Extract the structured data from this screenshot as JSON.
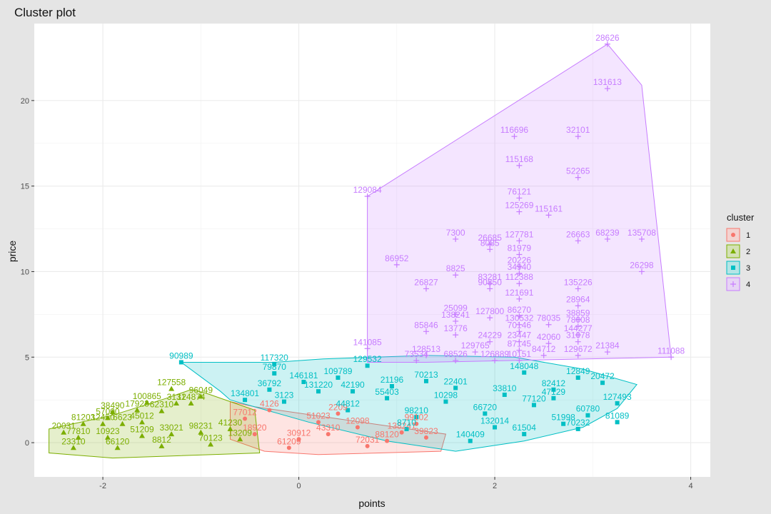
{
  "chart_data": {
    "type": "scatter",
    "title": "Cluster plot",
    "xlabel": "points",
    "ylabel": "price",
    "xlim": [
      -2.7,
      4.2
    ],
    "ylim": [
      -2.0,
      24.5
    ],
    "x_ticks": [
      -2,
      0,
      2,
      4
    ],
    "y_ticks": [
      0,
      5,
      10,
      15,
      20
    ],
    "grid": true,
    "legend": {
      "title": "cluster",
      "placement": "right"
    },
    "clusters": [
      {
        "name": "1",
        "color": "#F8766D",
        "shape": "circle",
        "hull": [
          [
            -0.7,
            2.4
          ],
          [
            -0.45,
            2.1
          ],
          [
            1.0,
            0.9
          ],
          [
            1.5,
            0.5
          ],
          [
            1.45,
            -0.5
          ],
          [
            0.2,
            -0.7
          ],
          [
            -0.35,
            -0.5
          ],
          [
            -0.7,
            0.2
          ]
        ],
        "points": [
          {
            "x": 1.05,
            "y": 0.6,
            "label": "138241"
          },
          {
            "x": 1.3,
            "y": 0.3,
            "label": "39823"
          },
          {
            "x": -0.3,
            "y": 1.9,
            "label": "4126"
          },
          {
            "x": 0.2,
            "y": 1.2,
            "label": "51023"
          },
          {
            "x": 0.6,
            "y": 0.9,
            "label": "12098"
          },
          {
            "x": -0.55,
            "y": 1.4,
            "label": "77012"
          },
          {
            "x": 0.0,
            "y": 0.2,
            "label": "30912"
          },
          {
            "x": 0.9,
            "y": 0.1,
            "label": "88120"
          },
          {
            "x": -0.1,
            "y": -0.3,
            "label": "61209"
          },
          {
            "x": 0.4,
            "y": 1.7,
            "label": "2209"
          },
          {
            "x": 1.2,
            "y": 1.1,
            "label": "99102"
          },
          {
            "x": 0.7,
            "y": -0.2,
            "label": "72031"
          },
          {
            "x": -0.45,
            "y": 0.5,
            "label": "18920"
          },
          {
            "x": 0.3,
            "y": 0.5,
            "label": "43310"
          }
        ]
      },
      {
        "name": "2",
        "color": "#7CAE00",
        "shape": "triangle",
        "hull": [
          [
            -2.55,
            0.8
          ],
          [
            -1.9,
            1.6
          ],
          [
            -1.35,
            2.6
          ],
          [
            -1.1,
            3.1
          ],
          [
            -0.95,
            2.9
          ],
          [
            -0.45,
            1.9
          ],
          [
            -0.4,
            -0.6
          ],
          [
            -1.9,
            -0.9
          ],
          [
            -2.55,
            -0.6
          ]
        ],
        "points": [
          {
            "x": -1.3,
            "y": 3.15,
            "label": "127558"
          },
          {
            "x": -1.0,
            "y": 2.7,
            "label": "96049"
          },
          {
            "x": -1.55,
            "y": 2.35,
            "label": "100865"
          },
          {
            "x": -1.25,
            "y": 2.3,
            "label": "3131"
          },
          {
            "x": -1.1,
            "y": 2.3,
            "label": "124874"
          },
          {
            "x": -1.9,
            "y": 1.8,
            "label": "38490"
          },
          {
            "x": -1.65,
            "y": 1.9,
            "label": "17923"
          },
          {
            "x": -1.4,
            "y": 1.85,
            "label": "62310"
          },
          {
            "x": -1.95,
            "y": 1.45,
            "label": "57000"
          },
          {
            "x": -2.2,
            "y": 1.1,
            "label": "81203"
          },
          {
            "x": -2.0,
            "y": 1.1,
            "label": "12450"
          },
          {
            "x": -1.8,
            "y": 1.1,
            "label": "6623"
          },
          {
            "x": -1.6,
            "y": 1.2,
            "label": "45012"
          },
          {
            "x": -2.4,
            "y": 0.6,
            "label": "20031"
          },
          {
            "x": -2.25,
            "y": 0.3,
            "label": "77810"
          },
          {
            "x": -1.95,
            "y": 0.3,
            "label": "10923"
          },
          {
            "x": -1.6,
            "y": 0.4,
            "label": "51209"
          },
          {
            "x": -1.3,
            "y": 0.5,
            "label": "33021"
          },
          {
            "x": -1.0,
            "y": 0.6,
            "label": "98231"
          },
          {
            "x": -0.7,
            "y": 0.8,
            "label": "41230"
          },
          {
            "x": -2.3,
            "y": -0.3,
            "label": "23310"
          },
          {
            "x": -1.85,
            "y": -0.3,
            "label": "66120"
          },
          {
            "x": -1.4,
            "y": -0.2,
            "label": "8812"
          },
          {
            "x": -0.9,
            "y": -0.1,
            "label": "70123"
          },
          {
            "x": -0.6,
            "y": 0.2,
            "label": "13209"
          }
        ]
      },
      {
        "name": "3",
        "color": "#00BFC4",
        "shape": "square",
        "hull": [
          [
            -1.2,
            4.7
          ],
          [
            -0.25,
            4.7
          ],
          [
            0.25,
            4.9
          ],
          [
            1.3,
            5.1
          ],
          [
            2.2,
            5.0
          ],
          [
            2.9,
            4.3
          ],
          [
            3.45,
            3.4
          ],
          [
            3.25,
            2.0
          ],
          [
            2.9,
            0.9
          ],
          [
            2.3,
            0.1
          ],
          [
            1.6,
            -0.5
          ],
          [
            0.9,
            0.1
          ],
          [
            0.1,
            1.2
          ],
          [
            -0.7,
            2.5
          ],
          [
            -0.8,
            3.0
          ]
        ],
        "points": [
          {
            "x": -1.2,
            "y": 4.7,
            "label": "90989"
          },
          {
            "x": -0.25,
            "y": 4.6,
            "label": "117320"
          },
          {
            "x": -0.25,
            "y": 4.05,
            "label": "79870"
          },
          {
            "x": 0.05,
            "y": 3.55,
            "label": "146181"
          },
          {
            "x": 0.4,
            "y": 3.8,
            "label": "109789"
          },
          {
            "x": 0.7,
            "y": 4.5,
            "label": "129532"
          },
          {
            "x": -0.3,
            "y": 3.1,
            "label": "36792"
          },
          {
            "x": 0.2,
            "y": 3.0,
            "label": "131220"
          },
          {
            "x": 0.55,
            "y": 3.0,
            "label": "42190"
          },
          {
            "x": -0.55,
            "y": 2.5,
            "label": "134801"
          },
          {
            "x": -0.15,
            "y": 2.4,
            "label": "3123"
          },
          {
            "x": 0.95,
            "y": 3.3,
            "label": "21196"
          },
          {
            "x": 1.3,
            "y": 3.6,
            "label": "70213"
          },
          {
            "x": 1.6,
            "y": 3.2,
            "label": "22401"
          },
          {
            "x": 2.3,
            "y": 4.1,
            "label": "148048"
          },
          {
            "x": 2.85,
            "y": 3.8,
            "label": "12849"
          },
          {
            "x": 3.1,
            "y": 3.5,
            "label": "20472"
          },
          {
            "x": 2.6,
            "y": 3.1,
            "label": "82412"
          },
          {
            "x": 2.1,
            "y": 2.8,
            "label": "33810"
          },
          {
            "x": 3.25,
            "y": 2.3,
            "label": "127493"
          },
          {
            "x": 3.25,
            "y": 1.2,
            "label": "81089"
          },
          {
            "x": 2.95,
            "y": 1.6,
            "label": "60780"
          },
          {
            "x": 2.7,
            "y": 1.1,
            "label": "51998"
          },
          {
            "x": 2.85,
            "y": 0.8,
            "label": "70232"
          },
          {
            "x": 2.3,
            "y": 0.5,
            "label": "61504"
          },
          {
            "x": 1.75,
            "y": 0.1,
            "label": "140409"
          },
          {
            "x": 1.2,
            "y": 1.5,
            "label": "98210"
          },
          {
            "x": 0.5,
            "y": 1.9,
            "label": "44812"
          },
          {
            "x": 1.9,
            "y": 1.7,
            "label": "66720"
          },
          {
            "x": 1.5,
            "y": 2.4,
            "label": "10298"
          },
          {
            "x": 2.4,
            "y": 2.2,
            "label": "77120"
          },
          {
            "x": 0.9,
            "y": 2.6,
            "label": "55403"
          },
          {
            "x": 1.1,
            "y": 0.8,
            "label": "8710"
          },
          {
            "x": 2.0,
            "y": 0.9,
            "label": "132014"
          },
          {
            "x": 2.6,
            "y": 2.6,
            "label": "47129"
          }
        ]
      },
      {
        "name": "4",
        "color": "#C77CFF",
        "shape": "plus",
        "hull": [
          [
            0.7,
            14.4
          ],
          [
            3.15,
            23.3
          ],
          [
            3.5,
            20.9
          ],
          [
            3.8,
            5.0
          ],
          [
            1.3,
            4.7
          ],
          [
            0.7,
            4.7
          ]
        ],
        "points": [
          {
            "x": 3.15,
            "y": 23.3,
            "label": "28626"
          },
          {
            "x": 3.15,
            "y": 20.7,
            "label": "131613"
          },
          {
            "x": 2.2,
            "y": 17.9,
            "label": "116696"
          },
          {
            "x": 2.85,
            "y": 17.9,
            "label": "32101"
          },
          {
            "x": 2.25,
            "y": 16.2,
            "label": "115168"
          },
          {
            "x": 2.85,
            "y": 15.5,
            "label": "52265"
          },
          {
            "x": 0.7,
            "y": 14.4,
            "label": "129084"
          },
          {
            "x": 2.25,
            "y": 14.3,
            "label": "76121"
          },
          {
            "x": 2.25,
            "y": 13.5,
            "label": "125269"
          },
          {
            "x": 2.55,
            "y": 13.3,
            "label": "115161"
          },
          {
            "x": 1.6,
            "y": 11.9,
            "label": "7300"
          },
          {
            "x": 1.95,
            "y": 11.6,
            "label": "26685"
          },
          {
            "x": 2.25,
            "y": 11.8,
            "label": "127781"
          },
          {
            "x": 2.85,
            "y": 11.8,
            "label": "26663"
          },
          {
            "x": 3.15,
            "y": 11.9,
            "label": "68239"
          },
          {
            "x": 3.5,
            "y": 11.9,
            "label": "135708"
          },
          {
            "x": 1.95,
            "y": 11.3,
            "label": "8085"
          },
          {
            "x": 2.25,
            "y": 11.0,
            "label": "81979"
          },
          {
            "x": 1.0,
            "y": 10.4,
            "label": "86952"
          },
          {
            "x": 2.25,
            "y": 10.3,
            "label": "20226"
          },
          {
            "x": 1.6,
            "y": 9.8,
            "label": "8825"
          },
          {
            "x": 2.25,
            "y": 9.9,
            "label": "34940"
          },
          {
            "x": 3.5,
            "y": 10.0,
            "label": "26298"
          },
          {
            "x": 1.3,
            "y": 9.0,
            "label": "26827"
          },
          {
            "x": 1.95,
            "y": 9.3,
            "label": "83281"
          },
          {
            "x": 2.25,
            "y": 9.3,
            "label": "112388"
          },
          {
            "x": 1.95,
            "y": 9.0,
            "label": "90850"
          },
          {
            "x": 2.85,
            "y": 9.0,
            "label": "135226"
          },
          {
            "x": 2.25,
            "y": 8.4,
            "label": "121691"
          },
          {
            "x": 2.85,
            "y": 8.0,
            "label": "28964"
          },
          {
            "x": 1.6,
            "y": 7.5,
            "label": "25099"
          },
          {
            "x": 1.6,
            "y": 7.1,
            "label": "138241"
          },
          {
            "x": 1.95,
            "y": 7.3,
            "label": "127800"
          },
          {
            "x": 2.25,
            "y": 7.4,
            "label": "86270"
          },
          {
            "x": 2.25,
            "y": 6.9,
            "label": "130532"
          },
          {
            "x": 2.55,
            "y": 6.9,
            "label": "78035"
          },
          {
            "x": 2.85,
            "y": 7.2,
            "label": "38859"
          },
          {
            "x": 2.85,
            "y": 6.8,
            "label": "78008"
          },
          {
            "x": 1.3,
            "y": 6.5,
            "label": "85846"
          },
          {
            "x": 1.6,
            "y": 6.3,
            "label": "13776"
          },
          {
            "x": 2.25,
            "y": 6.5,
            "label": "70146"
          },
          {
            "x": 2.85,
            "y": 6.3,
            "label": "144277"
          },
          {
            "x": 1.95,
            "y": 5.9,
            "label": "24229"
          },
          {
            "x": 2.25,
            "y": 5.9,
            "label": "23447"
          },
          {
            "x": 2.55,
            "y": 5.8,
            "label": "42060"
          },
          {
            "x": 2.85,
            "y": 5.9,
            "label": "31078"
          },
          {
            "x": 0.7,
            "y": 5.5,
            "label": "141085"
          },
          {
            "x": 1.3,
            "y": 5.1,
            "label": "128513"
          },
          {
            "x": 1.8,
            "y": 5.3,
            "label": "129765"
          },
          {
            "x": 2.25,
            "y": 5.4,
            "label": "87145"
          },
          {
            "x": 2.5,
            "y": 5.1,
            "label": "84712"
          },
          {
            "x": 2.85,
            "y": 5.1,
            "label": "129672"
          },
          {
            "x": 3.15,
            "y": 5.3,
            "label": "21384"
          },
          {
            "x": 3.8,
            "y": 5.0,
            "label": "111088"
          },
          {
            "x": 1.6,
            "y": 4.8,
            "label": "68526"
          },
          {
            "x": 2.0,
            "y": 4.8,
            "label": "126889"
          },
          {
            "x": 2.25,
            "y": 4.8,
            "label": "10151"
          },
          {
            "x": 1.2,
            "y": 4.8,
            "label": "73534"
          }
        ]
      }
    ]
  }
}
